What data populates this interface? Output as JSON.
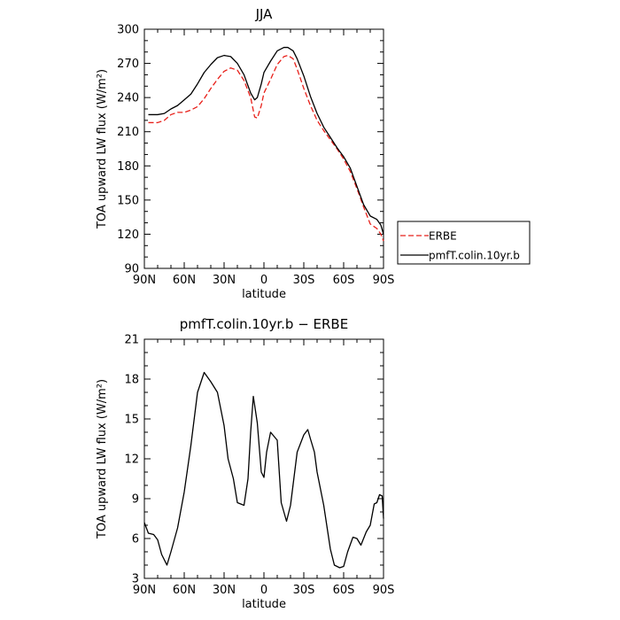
{
  "chart_data": [
    {
      "type": "line",
      "title": "JJA",
      "xlabel": "latitude",
      "ylabel": "TOA upward LW flux (W/m²)",
      "x_ticks": [
        -90,
        -60,
        -30,
        0,
        30,
        60,
        90
      ],
      "x_tick_labels": [
        "90N",
        "60N",
        "30N",
        "0",
        "30S",
        "60S",
        "90S"
      ],
      "xlim": [
        -90,
        90
      ],
      "ylim": [
        90,
        300
      ],
      "y_ticks": [
        90,
        120,
        150,
        180,
        210,
        240,
        270,
        300
      ],
      "y_tick_labels": [
        "90",
        "120",
        "150",
        "180",
        "210",
        "240",
        "270",
        "300"
      ],
      "legend_position": "right",
      "series": [
        {
          "name": "ERBE",
          "color": "#e8201a",
          "dash": "dashed",
          "x": [
            -87,
            -80,
            -75,
            -70,
            -65,
            -60,
            -55,
            -50,
            -45,
            -40,
            -35,
            -30,
            -25,
            -20,
            -15,
            -10,
            -7,
            -5,
            -2,
            0,
            5,
            10,
            15,
            18,
            22,
            25,
            30,
            35,
            40,
            45,
            50,
            55,
            60,
            65,
            70,
            75,
            80,
            85,
            88,
            90
          ],
          "y": [
            218,
            218,
            220,
            225,
            227,
            227,
            229,
            232,
            239,
            248,
            256,
            263,
            266,
            264,
            255,
            240,
            223,
            222,
            233,
            244,
            256,
            269,
            276,
            277,
            274,
            265,
            248,
            233,
            220,
            211,
            203,
            195,
            186,
            175,
            160,
            144,
            129,
            125,
            120,
            114
          ]
        },
        {
          "name": "pmfT.colin.10yr.b",
          "color": "#000000",
          "dash": "solid",
          "x": [
            -87,
            -80,
            -75,
            -70,
            -65,
            -60,
            -55,
            -50,
            -45,
            -40,
            -35,
            -30,
            -25,
            -20,
            -15,
            -10,
            -7,
            -5,
            -2,
            0,
            5,
            10,
            15,
            18,
            22,
            25,
            30,
            35,
            40,
            45,
            50,
            55,
            60,
            65,
            70,
            75,
            80,
            85,
            88,
            90
          ],
          "y": [
            225,
            225,
            226,
            230,
            233,
            238,
            243,
            252,
            262,
            269,
            275,
            277,
            276,
            270,
            260,
            244,
            238,
            240,
            252,
            262,
            272,
            281,
            284,
            284,
            281,
            274,
            259,
            241,
            226,
            214,
            205,
            196,
            188,
            178,
            162,
            146,
            136,
            133,
            128,
            120
          ]
        }
      ]
    },
    {
      "type": "line",
      "title": "pmfT.colin.10yr.b − ERBE",
      "xlabel": "latitude",
      "ylabel": "TOA upward LW flux (W/m²)",
      "x_ticks": [
        -90,
        -60,
        -30,
        0,
        30,
        60,
        90
      ],
      "x_tick_labels": [
        "90N",
        "60N",
        "30N",
        "0",
        "30S",
        "60S",
        "90S"
      ],
      "xlim": [
        -90,
        90
      ],
      "ylim": [
        3,
        21
      ],
      "y_ticks": [
        3,
        6,
        9,
        12,
        15,
        18,
        21
      ],
      "y_tick_labels": [
        "3",
        "6",
        "9",
        "12",
        "15",
        "18",
        "21"
      ],
      "series": [
        {
          "color": "#000000",
          "dash": "solid",
          "x": [
            -90,
            -87,
            -83,
            -80,
            -77,
            -73,
            -70,
            -65,
            -60,
            -55,
            -50,
            -45,
            -40,
            -35,
            -30,
            -27,
            -23,
            -20,
            -15,
            -12,
            -10,
            -8,
            -5,
            -2,
            0,
            2,
            5,
            10,
            13,
            17,
            20,
            25,
            30,
            33,
            35,
            38,
            40,
            45,
            50,
            53,
            57,
            60,
            63,
            67,
            70,
            73,
            77,
            80,
            83,
            85,
            87,
            89,
            90
          ],
          "y": [
            7.2,
            6.4,
            6.3,
            5.9,
            4.8,
            4.0,
            5.0,
            6.8,
            9.5,
            13.0,
            17.0,
            18.5,
            17.8,
            17.0,
            14.5,
            12.0,
            10.5,
            8.7,
            8.5,
            10.5,
            14.0,
            16.7,
            14.7,
            11.0,
            10.6,
            12.5,
            14.0,
            13.4,
            8.7,
            7.3,
            8.5,
            12.5,
            13.8,
            14.2,
            13.5,
            12.5,
            11.0,
            8.5,
            5.2,
            4.0,
            3.8,
            3.9,
            5.0,
            6.1,
            6.0,
            5.5,
            6.5,
            7.0,
            8.6,
            8.7,
            9.3,
            9.2,
            7.5
          ]
        }
      ]
    }
  ]
}
